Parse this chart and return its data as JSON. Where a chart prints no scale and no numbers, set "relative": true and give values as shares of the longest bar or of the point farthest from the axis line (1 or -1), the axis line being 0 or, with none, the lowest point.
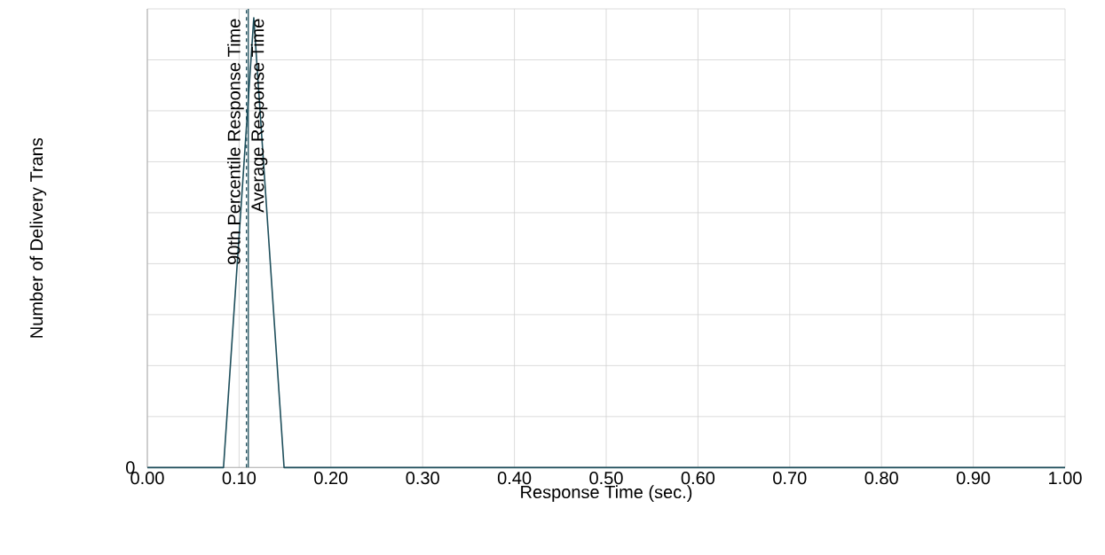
{
  "chart_data": {
    "type": "line",
    "relative": true,
    "xlabel": "Response Time (sec.)",
    "ylabel": "Number of Delivery Trans",
    "x": [
      0.0,
      0.083,
      0.116,
      0.149,
      1.0
    ],
    "series": [
      {
        "color": "#1f4f5c",
        "values": [
          0,
          0,
          1,
          0,
          0
        ]
      }
    ],
    "xlim": [
      0,
      1
    ],
    "xticks": [
      {
        "value": 0,
        "label": "0.00"
      },
      {
        "value": 0.1,
        "label": "0.10"
      },
      {
        "value": 0.2,
        "label": "0.20"
      },
      {
        "value": 0.3,
        "label": "0.30"
      },
      {
        "value": 0.4,
        "label": "0.40"
      },
      {
        "value": 0.5,
        "label": "0.50"
      },
      {
        "value": 0.6,
        "label": "0.60"
      },
      {
        "value": 0.7,
        "label": "0.70"
      },
      {
        "value": 0.8,
        "label": "0.80"
      },
      {
        "value": 0.9,
        "label": "0.90"
      },
      {
        "value": 1,
        "label": "1.00"
      }
    ],
    "ref_lines": [
      {
        "axis": "x",
        "value": 0.108,
        "label": "90th Percentile Response Time",
        "line_style": "dashed",
        "color": "#1f4f5c"
      },
      {
        "axis": "x",
        "value": 0.11,
        "label": "Average Response Time",
        "line_style": "solid",
        "color": "#1f4f5c"
      }
    ],
    "annotations": [
      "0"
    ],
    "grid": true,
    "marker": "none",
    "line_style": "solid"
  }
}
